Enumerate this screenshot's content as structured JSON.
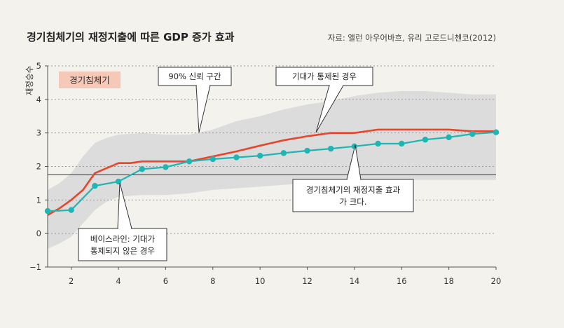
{
  "chart_data": {
    "type": "line",
    "title": "경기침체기의 재정지출에 따른 GDP 증가 효과",
    "source": "자료: 앨런 아우어바흐, 유리 고로드니첸코(2012)",
    "ylabel": "재정승수",
    "xlim": [
      1,
      20
    ],
    "ylim": [
      -1,
      5
    ],
    "xticks": [
      2,
      4,
      6,
      8,
      10,
      12,
      14,
      16,
      18,
      20
    ],
    "yticks": [
      -1,
      0,
      1,
      2,
      3,
      4,
      5
    ],
    "grid": "horizontal dashed",
    "recession_label": "경기침체기",
    "reference_line": 1.75,
    "confidence_band": {
      "name": "90% 신뢰 구간",
      "x": [
        1,
        1.5,
        2,
        2.5,
        3,
        3.5,
        4,
        5,
        6,
        7,
        8,
        9,
        10,
        11,
        12,
        13,
        14,
        15,
        16,
        17,
        18,
        19,
        20
      ],
      "upper": [
        1.3,
        1.5,
        1.8,
        2.3,
        2.7,
        2.85,
        2.95,
        3.0,
        2.95,
        2.95,
        3.1,
        3.35,
        3.5,
        3.7,
        3.85,
        3.95,
        4.1,
        4.2,
        4.25,
        4.25,
        4.2,
        4.15,
        4.15
      ],
      "lower": [
        -0.45,
        -0.3,
        -0.1,
        0.3,
        0.7,
        0.95,
        1.1,
        1.15,
        1.15,
        1.2,
        1.3,
        1.35,
        1.4,
        1.45,
        1.5,
        1.55,
        1.6,
        1.6,
        1.6,
        1.6,
        1.6,
        1.6,
        1.6
      ]
    },
    "series": [
      {
        "name": "기대가 통제된 경우",
        "color": "#e8452a",
        "x": [
          1,
          1.5,
          2,
          2.5,
          2.8,
          3,
          3.5,
          4,
          4.5,
          5,
          6,
          7,
          8,
          9,
          10,
          11,
          12,
          13,
          14,
          15,
          16,
          17,
          18,
          19,
          20
        ],
        "values": [
          0.55,
          0.75,
          1.0,
          1.3,
          1.6,
          1.8,
          1.95,
          2.1,
          2.1,
          2.15,
          2.15,
          2.15,
          2.3,
          2.45,
          2.62,
          2.78,
          2.9,
          3.0,
          3.0,
          3.1,
          3.1,
          3.1,
          3.1,
          3.05,
          3.05
        ]
      },
      {
        "name": "베이스라인: 기대가 통제되지 않은 경우",
        "color": "#1fb5b3",
        "x": [
          1,
          1.5,
          2,
          3,
          4,
          5,
          6,
          7,
          8,
          9,
          10,
          11,
          12,
          13,
          14,
          15,
          16,
          17,
          18,
          19,
          20
        ],
        "values": [
          0.67,
          0.68,
          0.7,
          1.42,
          1.55,
          1.92,
          1.98,
          2.15,
          2.22,
          2.27,
          2.32,
          2.4,
          2.47,
          2.53,
          2.6,
          2.68,
          2.68,
          2.8,
          2.87,
          2.97,
          3.02
        ]
      }
    ],
    "annotations": [
      {
        "lines": [
          "90% 신뢰 구간"
        ],
        "x": 6.4,
        "y": 3.0
      },
      {
        "lines": [
          "기대가 통제된 경우"
        ],
        "x": 12.2,
        "y": 3.0
      },
      {
        "lines": [
          "경기침체기의 재정지출 효과",
          "가 크다."
        ],
        "x": 14.1,
        "y": 2.6
      },
      {
        "lines": [
          "베이스라인: 기대가",
          "통제되지 않은 경우"
        ],
        "x": 4.0,
        "y": 1.55
      }
    ]
  }
}
